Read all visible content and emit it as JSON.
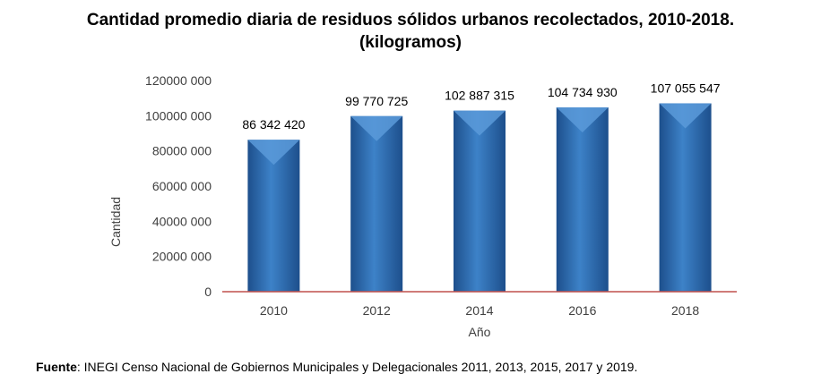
{
  "chart_data": {
    "type": "bar",
    "title": "Cantidad promedio diaria de residuos sólidos urbanos recolectados, 2010-2018.",
    "subtitle": "(kilogramos)",
    "categories": [
      "2010",
      "2012",
      "2014",
      "2016",
      "2018"
    ],
    "values": [
      86342420,
      99770725,
      102887315,
      104734930,
      107055547
    ],
    "data_labels": [
      "86 342 420",
      "99 770 725",
      "102 887 315",
      "104 734 930",
      "107 055 547"
    ],
    "xlabel": "Año",
    "ylabel": "Cantidad",
    "ylim": [
      0,
      120000000
    ],
    "yticks": [
      0,
      20000000,
      40000000,
      60000000,
      80000000,
      100000000,
      120000000
    ],
    "ytick_labels": [
      "0",
      "20000 000",
      "40000 000",
      "60000 000",
      "80000 000",
      "100000 000",
      "120000 000"
    ],
    "grid": false,
    "legend": "none",
    "colors": {
      "bar": "#2f6fb5",
      "bar_light": "#5b9ad9",
      "bar_dark": "#1d4f8c",
      "baseline": "#c0504d",
      "axis_text": "#404040"
    }
  },
  "source": {
    "label": "Fuente",
    "text": ": INEGI Censo Nacional de Gobiernos Municipales y Delegacionales 2011, 2013, 2015, 2017 y 2019."
  }
}
